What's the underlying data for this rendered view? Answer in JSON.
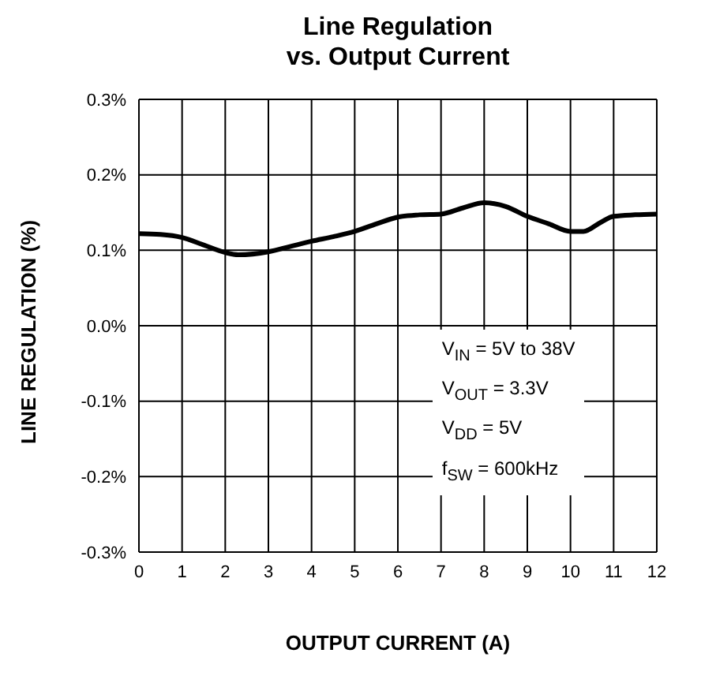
{
  "chart_data": {
    "type": "line",
    "title": "Line Regulation\nvs. Output Current",
    "xlabel": "OUTPUT CURRENT (A)",
    "ylabel": "LINE REGULATION (%)",
    "x": [
      0,
      0.5,
      1,
      1.5,
      2,
      2.3,
      3,
      3.5,
      4,
      4.5,
      5,
      5.5,
      6,
      6.5,
      7,
      7.5,
      8,
      8.5,
      9,
      9.5,
      10,
      10.3,
      10.7,
      11,
      11.5,
      12
    ],
    "series": [
      {
        "color": "#000000",
        "values": [
          0.122,
          0.121,
          0.117,
          0.107,
          0.097,
          0.094,
          0.098,
          0.105,
          0.112,
          0.118,
          0.125,
          0.135,
          0.144,
          0.147,
          0.148,
          0.156,
          0.163,
          0.158,
          0.145,
          0.135,
          0.125,
          0.125,
          0.137,
          0.145,
          0.147,
          0.148
        ]
      }
    ],
    "xlim": [
      0,
      12
    ],
    "xticks": [
      0,
      1,
      2,
      3,
      4,
      5,
      6,
      7,
      8,
      9,
      10,
      11,
      12
    ],
    "ylim": [
      -0.3,
      0.3
    ],
    "yticks": [
      {
        "value": -0.3,
        "label": "-0.3%"
      },
      {
        "value": -0.2,
        "label": "-0.2%"
      },
      {
        "value": -0.1,
        "label": "-0.1%"
      },
      {
        "value": 0,
        "label": "0.0%"
      },
      {
        "value": 0.1,
        "label": "0.1%"
      },
      {
        "value": 0.2,
        "label": "0.2%"
      },
      {
        "value": 0.3,
        "label": "0.3%"
      }
    ],
    "grid": true,
    "marker": "none",
    "line_style": "solid",
    "legend": false,
    "annotations": [
      "V$_{IN}$ = 5V to 38V",
      "V$_{OUT}$ = 3.3V",
      "V$_{DD}$ = 5V",
      "f$_{SW}$ = 600kHz"
    ]
  }
}
